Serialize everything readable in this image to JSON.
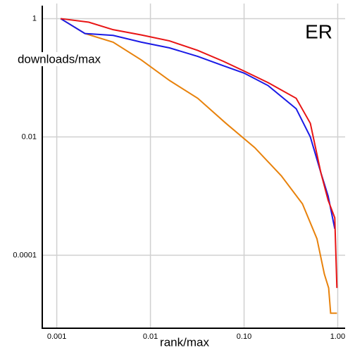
{
  "chart_data": {
    "type": "line",
    "annotation": "ER",
    "annotation_color": "#1010c0",
    "xlabel": "rank/max",
    "ylabel": "downloads/max",
    "xscale": "log",
    "yscale": "log",
    "grid": true,
    "xlim": [
      0.0007,
      1.2
    ],
    "ylim": [
      6e-06,
      1.8
    ],
    "xticks": [
      0.001,
      0.01,
      {
        "value": 0.1,
        "label": "0.10"
      },
      {
        "value": 1,
        "label": "1.00"
      }
    ],
    "yticks": [
      1,
      0.01,
      0.0001
    ],
    "series": [
      {
        "color": "#e8820c",
        "x": [
          0.0011,
          0.002,
          0.004,
          0.008,
          0.016,
          0.032,
          0.064,
          0.13,
          0.25,
          0.42,
          0.6,
          0.72,
          0.8,
          0.84,
          0.98
        ],
        "values": [
          1,
          0.56,
          0.4,
          0.2,
          0.09,
          0.045,
          0.017,
          0.0066,
          0.0022,
          0.00074,
          0.00019,
          4.8e-05,
          2.8e-05,
          1.05e-05,
          1.05e-05
        ]
      },
      {
        "color": "#1a1ae6",
        "x": [
          0.0011,
          0.002,
          0.004,
          0.008,
          0.016,
          0.032,
          0.06,
          0.1,
          0.18,
          0.36,
          0.51,
          0.66,
          0.79,
          0.93
        ],
        "values": [
          1,
          0.56,
          0.52,
          0.4,
          0.32,
          0.23,
          0.16,
          0.12,
          0.074,
          0.03,
          0.01,
          0.0025,
          0.001,
          0.00028
        ]
      },
      {
        "color": "#e81414",
        "x": [
          0.0011,
          0.0022,
          0.004,
          0.008,
          0.016,
          0.032,
          0.06,
          0.1,
          0.18,
          0.36,
          0.51,
          0.66,
          0.79,
          0.93,
          0.98
        ],
        "values": [
          1,
          0.87,
          0.65,
          0.53,
          0.42,
          0.29,
          0.19,
          0.13,
          0.083,
          0.045,
          0.017,
          0.0025,
          0.00085,
          0.00043,
          2.8e-05
        ]
      }
    ]
  }
}
